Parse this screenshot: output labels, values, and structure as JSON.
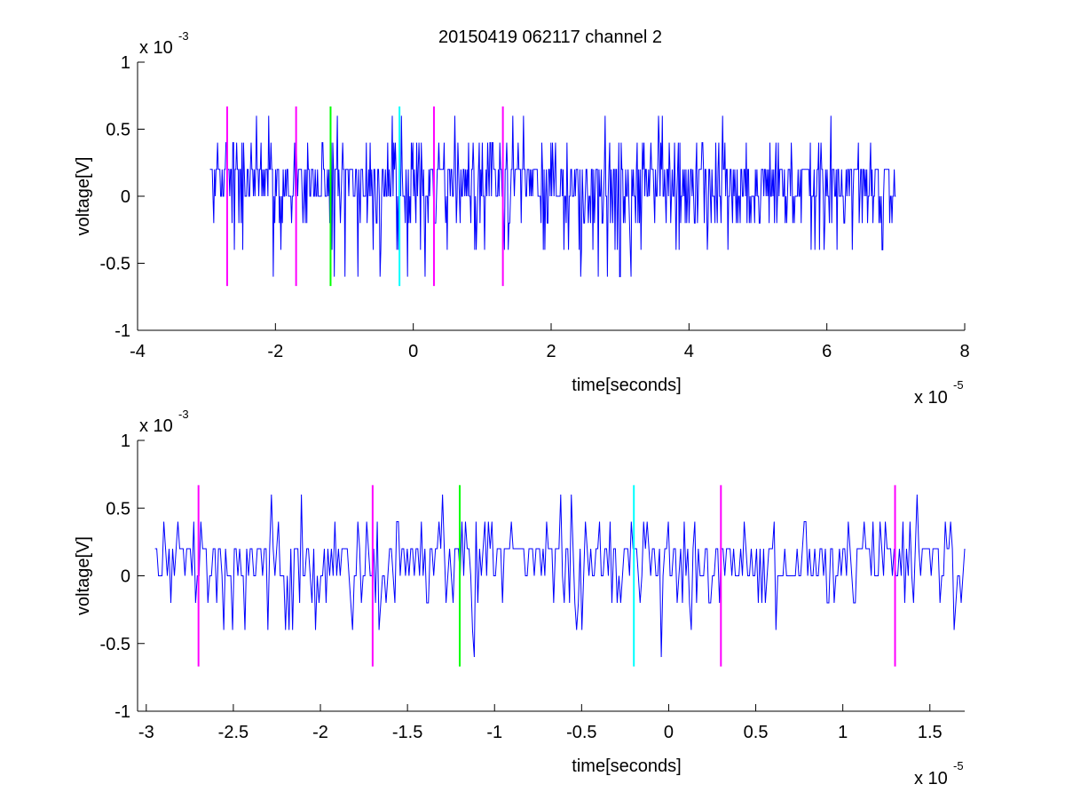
{
  "figure": {
    "title": "20150419 062117 channel 2"
  },
  "chart_data": [
    {
      "type": "line",
      "title": "20150419 062117 channel 2",
      "xlabel": "time[seconds]",
      "ylabel": "voltage[V]",
      "x_exponent_label": "x 10",
      "x_exponent": "-5",
      "y_exponent_label": "x 10",
      "y_exponent": "-3",
      "xlim": [
        -4,
        8
      ],
      "ylim": [
        -1,
        1
      ],
      "xticks": [
        -4,
        -2,
        0,
        2,
        4,
        6,
        8
      ],
      "xtick_labels": [
        "-4",
        "-2",
        "0",
        "2",
        "4",
        "6",
        "8"
      ],
      "yticks": [
        -1,
        -0.5,
        0,
        0.5,
        1
      ],
      "ytick_labels": [
        "-1",
        "-0.5",
        "0",
        "0.5",
        "1"
      ],
      "grid": false,
      "signal": {
        "color": "#0000ff",
        "x_start": -2.95,
        "x_end": 7.0,
        "samples": 900,
        "seed": 11
      },
      "markers": [
        {
          "x": -2.7,
          "color": "#ff00ff",
          "y_low": -0.67,
          "y_high": 0.67
        },
        {
          "x": -1.7,
          "color": "#ff00ff",
          "y_low": -0.67,
          "y_high": 0.67
        },
        {
          "x": -1.2,
          "color": "#00ff00",
          "y_low": -0.67,
          "y_high": 0.67
        },
        {
          "x": -0.2,
          "color": "#00ffff",
          "y_low": -0.67,
          "y_high": 0.67
        },
        {
          "x": 0.3,
          "color": "#ff00ff",
          "y_low": -0.67,
          "y_high": 0.67
        },
        {
          "x": 1.3,
          "color": "#ff00ff",
          "y_low": -0.67,
          "y_high": 0.67
        }
      ]
    },
    {
      "type": "line",
      "xlabel": "time[seconds]",
      "ylabel": "voltage[V]",
      "x_exponent_label": "x 10",
      "x_exponent": "-5",
      "y_exponent_label": "x 10",
      "y_exponent": "-3",
      "xlim": [
        -3.05,
        1.7
      ],
      "ylim": [
        -1,
        1
      ],
      "xticks": [
        -3,
        -2.5,
        -2,
        -1.5,
        -1,
        -0.5,
        0,
        0.5,
        1,
        1.5
      ],
      "xtick_labels": [
        "-3",
        "-2.5",
        "-2",
        "-1.5",
        "-1",
        "-0.5",
        "0",
        "0.5",
        "1",
        "1.5"
      ],
      "yticks": [
        -1,
        -0.5,
        0,
        0.5,
        1
      ],
      "ytick_labels": [
        "-1",
        "-0.5",
        "0",
        "0.5",
        "1"
      ],
      "grid": false,
      "signal": {
        "color": "#0000ff",
        "x_start": -2.95,
        "x_end": 1.7,
        "samples": 460,
        "seed": 23
      },
      "markers": [
        {
          "x": -2.7,
          "color": "#ff00ff",
          "y_low": -0.67,
          "y_high": 0.67
        },
        {
          "x": -1.7,
          "color": "#ff00ff",
          "y_low": -0.67,
          "y_high": 0.67
        },
        {
          "x": -1.2,
          "color": "#00ff00",
          "y_low": -0.67,
          "y_high": 0.67
        },
        {
          "x": -0.2,
          "color": "#00ffff",
          "y_low": -0.67,
          "y_high": 0.67
        },
        {
          "x": 0.3,
          "color": "#ff00ff",
          "y_low": -0.67,
          "y_high": 0.67
        },
        {
          "x": 1.3,
          "color": "#ff00ff",
          "y_low": -0.67,
          "y_high": 0.67
        }
      ]
    }
  ]
}
